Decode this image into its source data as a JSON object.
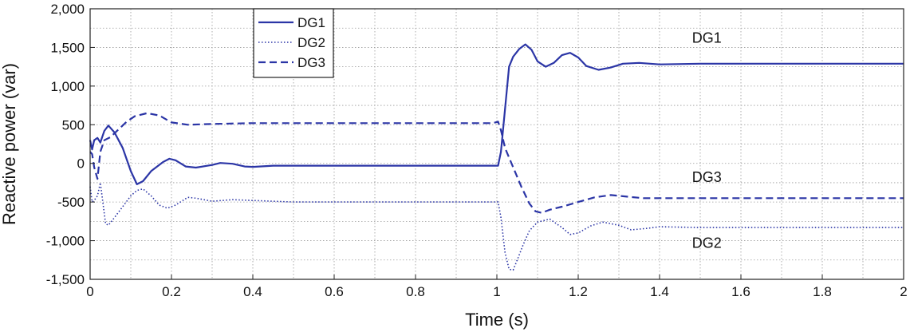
{
  "chart_data": {
    "type": "line",
    "xlabel": "Time (s)",
    "ylabel": "Reactive power (var)",
    "xlim": [
      0,
      2
    ],
    "ylim": [
      -1500,
      2000
    ],
    "grid": true,
    "legend_position": "top-left",
    "color": "#2b35a6",
    "x_ticks": [
      0,
      0.2,
      0.4,
      0.6,
      0.8,
      1,
      1.2,
      1.4,
      1.6,
      1.8,
      2
    ],
    "x_tick_labels": [
      "0",
      "0.2",
      "0.4",
      "0.6",
      "0.8",
      "1",
      "1.2",
      "1.4",
      "1.6",
      "1.8",
      "2"
    ],
    "y_ticks": [
      2000,
      1500,
      1000,
      500,
      0,
      -500,
      -1000,
      -1500
    ],
    "y_tick_labels": [
      "2,000",
      "1,500",
      "1,000",
      "500",
      "0",
      "-500",
      "-1,000",
      "-1,500"
    ],
    "series": [
      {
        "name": "DG1",
        "style": "solid",
        "points": [
          [
            0,
            300
          ],
          [
            0.005,
            180
          ],
          [
            0.01,
            300
          ],
          [
            0.018,
            330
          ],
          [
            0.025,
            270
          ],
          [
            0.035,
            420
          ],
          [
            0.045,
            490
          ],
          [
            0.06,
            400
          ],
          [
            0.08,
            200
          ],
          [
            0.1,
            -100
          ],
          [
            0.115,
            -270
          ],
          [
            0.13,
            -230
          ],
          [
            0.15,
            -100
          ],
          [
            0.18,
            20
          ],
          [
            0.195,
            60
          ],
          [
            0.21,
            40
          ],
          [
            0.235,
            -40
          ],
          [
            0.26,
            -55
          ],
          [
            0.3,
            -20
          ],
          [
            0.32,
            5
          ],
          [
            0.35,
            -5
          ],
          [
            0.38,
            -40
          ],
          [
            0.4,
            -45
          ],
          [
            0.45,
            -30
          ],
          [
            0.5,
            -30
          ],
          [
            0.6,
            -30
          ],
          [
            0.7,
            -30
          ],
          [
            0.8,
            -30
          ],
          [
            0.9,
            -30
          ],
          [
            0.99,
            -30
          ],
          [
            1.003,
            -30
          ],
          [
            1.01,
            150
          ],
          [
            1.02,
            700
          ],
          [
            1.03,
            1250
          ],
          [
            1.04,
            1380
          ],
          [
            1.055,
            1480
          ],
          [
            1.07,
            1540
          ],
          [
            1.085,
            1470
          ],
          [
            1.1,
            1320
          ],
          [
            1.12,
            1250
          ],
          [
            1.14,
            1300
          ],
          [
            1.16,
            1400
          ],
          [
            1.18,
            1430
          ],
          [
            1.2,
            1370
          ],
          [
            1.22,
            1260
          ],
          [
            1.25,
            1210
          ],
          [
            1.28,
            1240
          ],
          [
            1.31,
            1290
          ],
          [
            1.35,
            1300
          ],
          [
            1.4,
            1280
          ],
          [
            1.5,
            1290
          ],
          [
            1.6,
            1290
          ],
          [
            1.7,
            1290
          ],
          [
            1.8,
            1290
          ],
          [
            1.9,
            1290
          ],
          [
            2,
            1290
          ]
        ]
      },
      {
        "name": "DG2",
        "style": "dotted",
        "points": [
          [
            0,
            -300
          ],
          [
            0.005,
            -500
          ],
          [
            0.01,
            -480
          ],
          [
            0.018,
            -420
          ],
          [
            0.025,
            -250
          ],
          [
            0.03,
            -450
          ],
          [
            0.038,
            -780
          ],
          [
            0.045,
            -800
          ],
          [
            0.06,
            -700
          ],
          [
            0.08,
            -560
          ],
          [
            0.1,
            -420
          ],
          [
            0.115,
            -350
          ],
          [
            0.13,
            -330
          ],
          [
            0.15,
            -420
          ],
          [
            0.17,
            -540
          ],
          [
            0.19,
            -580
          ],
          [
            0.21,
            -540
          ],
          [
            0.24,
            -440
          ],
          [
            0.26,
            -450
          ],
          [
            0.3,
            -490
          ],
          [
            0.35,
            -470
          ],
          [
            0.4,
            -480
          ],
          [
            0.5,
            -500
          ],
          [
            0.6,
            -500
          ],
          [
            0.7,
            -500
          ],
          [
            0.8,
            -500
          ],
          [
            0.9,
            -500
          ],
          [
            0.99,
            -500
          ],
          [
            1.003,
            -500
          ],
          [
            1.01,
            -700
          ],
          [
            1.02,
            -1150
          ],
          [
            1.03,
            -1370
          ],
          [
            1.04,
            -1380
          ],
          [
            1.05,
            -1250
          ],
          [
            1.065,
            -1050
          ],
          [
            1.08,
            -870
          ],
          [
            1.1,
            -760
          ],
          [
            1.13,
            -720
          ],
          [
            1.16,
            -830
          ],
          [
            1.18,
            -920
          ],
          [
            1.2,
            -900
          ],
          [
            1.23,
            -810
          ],
          [
            1.26,
            -760
          ],
          [
            1.3,
            -800
          ],
          [
            1.33,
            -860
          ],
          [
            1.37,
            -840
          ],
          [
            1.4,
            -820
          ],
          [
            1.5,
            -830
          ],
          [
            1.6,
            -830
          ],
          [
            1.7,
            -830
          ],
          [
            1.8,
            -830
          ],
          [
            1.9,
            -830
          ],
          [
            2,
            -830
          ]
        ]
      },
      {
        "name": "DG3",
        "style": "dashed",
        "points": [
          [
            0,
            150
          ],
          [
            0.005,
            120
          ],
          [
            0.01,
            -50
          ],
          [
            0.018,
            -200
          ],
          [
            0.025,
            150
          ],
          [
            0.035,
            300
          ],
          [
            0.05,
            340
          ],
          [
            0.07,
            440
          ],
          [
            0.09,
            540
          ],
          [
            0.11,
            610
          ],
          [
            0.14,
            650
          ],
          [
            0.17,
            620
          ],
          [
            0.2,
            530
          ],
          [
            0.24,
            500
          ],
          [
            0.3,
            510
          ],
          [
            0.4,
            520
          ],
          [
            0.5,
            520
          ],
          [
            0.6,
            520
          ],
          [
            0.7,
            520
          ],
          [
            0.8,
            520
          ],
          [
            0.9,
            520
          ],
          [
            0.99,
            520
          ],
          [
            1.003,
            540
          ],
          [
            1.01,
            430
          ],
          [
            1.02,
            200
          ],
          [
            1.04,
            -50
          ],
          [
            1.06,
            -300
          ],
          [
            1.08,
            -520
          ],
          [
            1.095,
            -620
          ],
          [
            1.11,
            -640
          ],
          [
            1.13,
            -600
          ],
          [
            1.16,
            -560
          ],
          [
            1.2,
            -500
          ],
          [
            1.24,
            -440
          ],
          [
            1.28,
            -410
          ],
          [
            1.32,
            -430
          ],
          [
            1.36,
            -450
          ],
          [
            1.4,
            -450
          ],
          [
            1.5,
            -450
          ],
          [
            1.6,
            -450
          ],
          [
            1.7,
            -450
          ],
          [
            1.8,
            -450
          ],
          [
            1.9,
            -450
          ],
          [
            2,
            -450
          ]
        ]
      }
    ],
    "annotations": [
      {
        "text": "DG1",
        "x": 1.48,
        "y": 1560
      },
      {
        "text": "DG3",
        "x": 1.48,
        "y": -240
      },
      {
        "text": "DG2",
        "x": 1.48,
        "y": -1090
      }
    ]
  }
}
